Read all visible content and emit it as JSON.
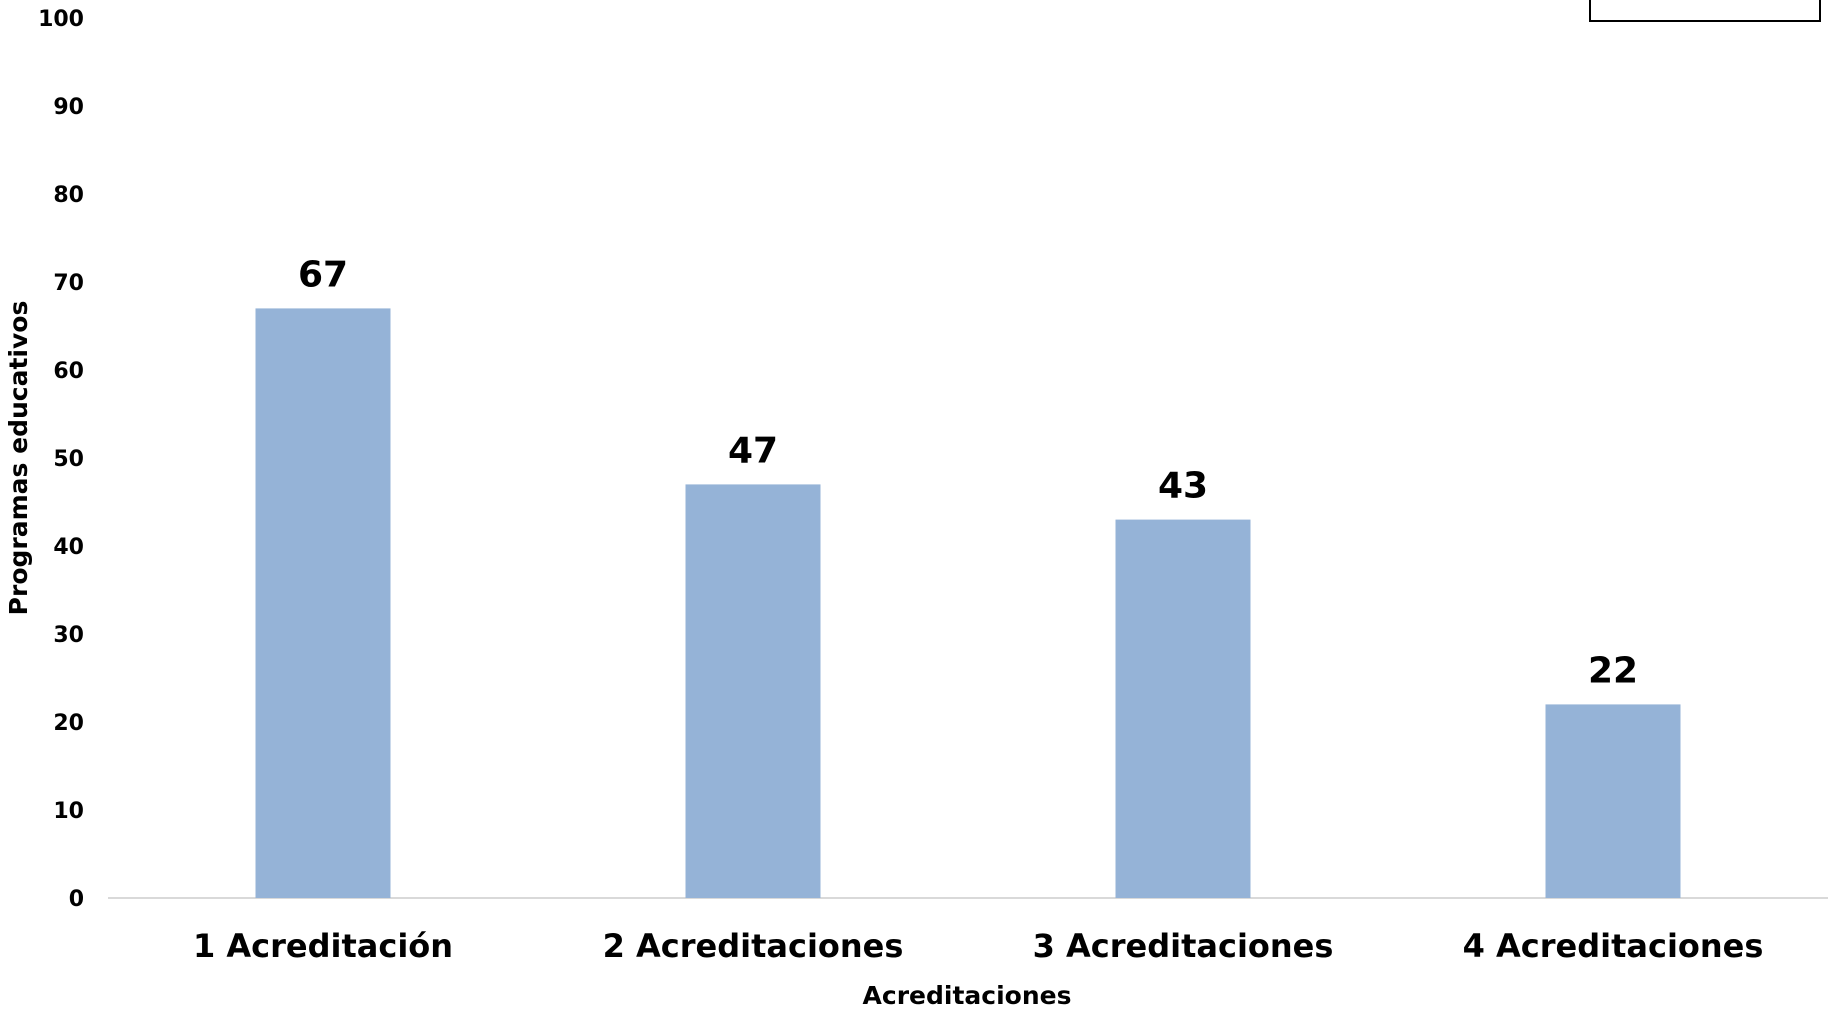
{
  "chart_data": {
    "type": "bar",
    "categories": [
      "1 Acreditación",
      "2 Acreditaciones",
      "3 Acreditaciones",
      "4 Acreditaciones"
    ],
    "values": [
      67,
      47,
      43,
      22
    ],
    "data_labels": [
      "67",
      "47",
      "43",
      "22"
    ],
    "title": "",
    "xlabel": "Acreditaciones",
    "ylabel": "Programas educativos",
    "ylim": [
      0,
      100
    ],
    "yticks": [
      0,
      10,
      20,
      30,
      40,
      50,
      60,
      70,
      80,
      90,
      100
    ],
    "grid": false,
    "legend": "top-right",
    "colors": {
      "bar": "#95b3d7",
      "axis": "#d9d9d9",
      "text": "#000000"
    }
  }
}
